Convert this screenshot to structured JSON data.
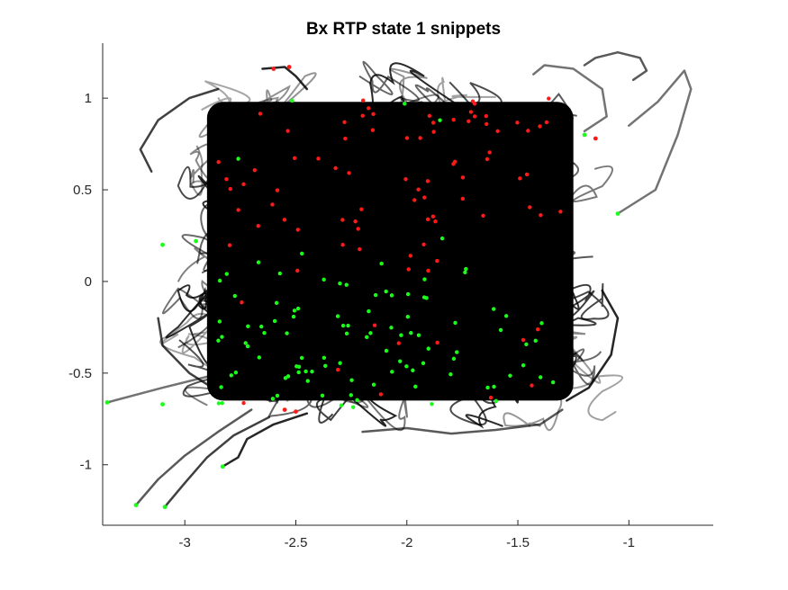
{
  "chart_data": {
    "type": "line",
    "title": "Bx  RTP state 1 snippets",
    "xlabel": "",
    "ylabel": "",
    "xlim": [
      -3.37,
      -0.62
    ],
    "ylim": [
      -1.33,
      1.3
    ],
    "xticks": [
      -3,
      -2.5,
      -2,
      -1.5,
      -1
    ],
    "yticks": [
      -1,
      -0.5,
      0,
      0.5,
      1
    ],
    "xtick_labels": [
      "-3",
      "-2.5",
      "-2",
      "-1.5",
      "-1"
    ],
    "ytick_labels": [
      "-1",
      "-0.5",
      "0",
      "0.5",
      "1"
    ],
    "grid": false,
    "legend": "none",
    "dense_region": {
      "x": [
        -2.9,
        -1.25
      ],
      "y": [
        -0.65,
        0.98
      ]
    },
    "line_color": "#000000",
    "start_marker_color": "#ff1a1a",
    "end_marker_color": "#1aff1a",
    "series": [
      {
        "x": [
          -3.35,
          -3.1,
          -2.9,
          -2.75,
          -2.55
        ],
        "y": [
          -0.66,
          -0.58,
          -0.52,
          -0.47,
          -0.42
        ]
      },
      {
        "x": [
          -3.22,
          -3.12,
          -3.0,
          -2.85,
          -2.7
        ],
        "y": [
          -1.22,
          -1.08,
          -0.95,
          -0.82,
          -0.7
        ]
      },
      {
        "x": [
          -3.09,
          -3.0,
          -2.9,
          -2.78,
          -2.62
        ],
        "y": [
          -1.23,
          -1.1,
          -0.96,
          -0.84,
          -0.74
        ]
      },
      {
        "x": [
          -2.83,
          -2.76,
          -2.72,
          -2.6,
          -2.45
        ],
        "y": [
          -1.01,
          -0.96,
          -0.86,
          -0.78,
          -0.72
        ]
      },
      {
        "x": [
          -1.05,
          -0.88,
          -0.78,
          -0.72,
          -0.75,
          -0.87,
          -1.0
        ],
        "y": [
          0.37,
          0.5,
          0.8,
          1.05,
          1.15,
          0.98,
          0.85
        ]
      },
      {
        "x": [
          -1.2,
          -1.15,
          -1.05,
          -0.95,
          -0.92,
          -0.98
        ],
        "y": [
          1.18,
          1.22,
          1.25,
          1.22,
          1.15,
          1.1
        ]
      },
      {
        "x": [
          -3.15,
          -3.2,
          -3.12,
          -2.98,
          -2.85
        ],
        "y": [
          0.6,
          0.72,
          0.88,
          1.0,
          1.05
        ]
      },
      {
        "x": [
          -2.65,
          -2.55,
          -2.5,
          -2.45
        ],
        "y": [
          1.16,
          1.17,
          1.12,
          1.05
        ]
      },
      {
        "x": [
          -1.43,
          -1.38,
          -1.25,
          -1.12,
          -1.1,
          -1.2
        ],
        "y": [
          1.13,
          1.18,
          1.16,
          1.05,
          0.9,
          0.82
        ]
      },
      {
        "x": [
          -2.2,
          -2.0,
          -1.8,
          -1.6,
          -1.4,
          -1.3
        ],
        "y": [
          -0.82,
          -0.8,
          -0.83,
          -0.81,
          -0.78,
          -0.7
        ]
      },
      {
        "x": [
          -3.12,
          -3.1,
          -2.98,
          -2.85
        ],
        "y": [
          -0.2,
          -0.35,
          -0.5,
          -0.6
        ]
      },
      {
        "x": [
          -1.12,
          -1.05,
          -1.08,
          -1.18,
          -1.28
        ],
        "y": [
          -0.05,
          -0.2,
          -0.4,
          -0.58,
          -0.65
        ]
      }
    ],
    "marker_points": [
      {
        "x": -3.35,
        "y": -0.66,
        "color": "end"
      },
      {
        "x": -3.22,
        "y": -1.22,
        "color": "end"
      },
      {
        "x": -3.09,
        "y": -1.23,
        "color": "end"
      },
      {
        "x": -2.83,
        "y": -1.01,
        "color": "end"
      },
      {
        "x": -3.1,
        "y": -0.67,
        "color": "end"
      },
      {
        "x": -1.05,
        "y": 0.37,
        "color": "end"
      },
      {
        "x": -3.1,
        "y": 0.2,
        "color": "end"
      },
      {
        "x": -2.6,
        "y": 1.16,
        "color": "start"
      },
      {
        "x": -2.53,
        "y": 1.17,
        "color": "start"
      },
      {
        "x": -1.2,
        "y": 0.8,
        "color": "end"
      },
      {
        "x": -1.15,
        "y": 0.78,
        "color": "start"
      },
      {
        "x": -2.55,
        "y": -0.7,
        "color": "start"
      },
      {
        "x": -2.5,
        "y": -0.71,
        "color": "start"
      },
      {
        "x": -2.95,
        "y": 0.22,
        "color": "end"
      }
    ]
  }
}
